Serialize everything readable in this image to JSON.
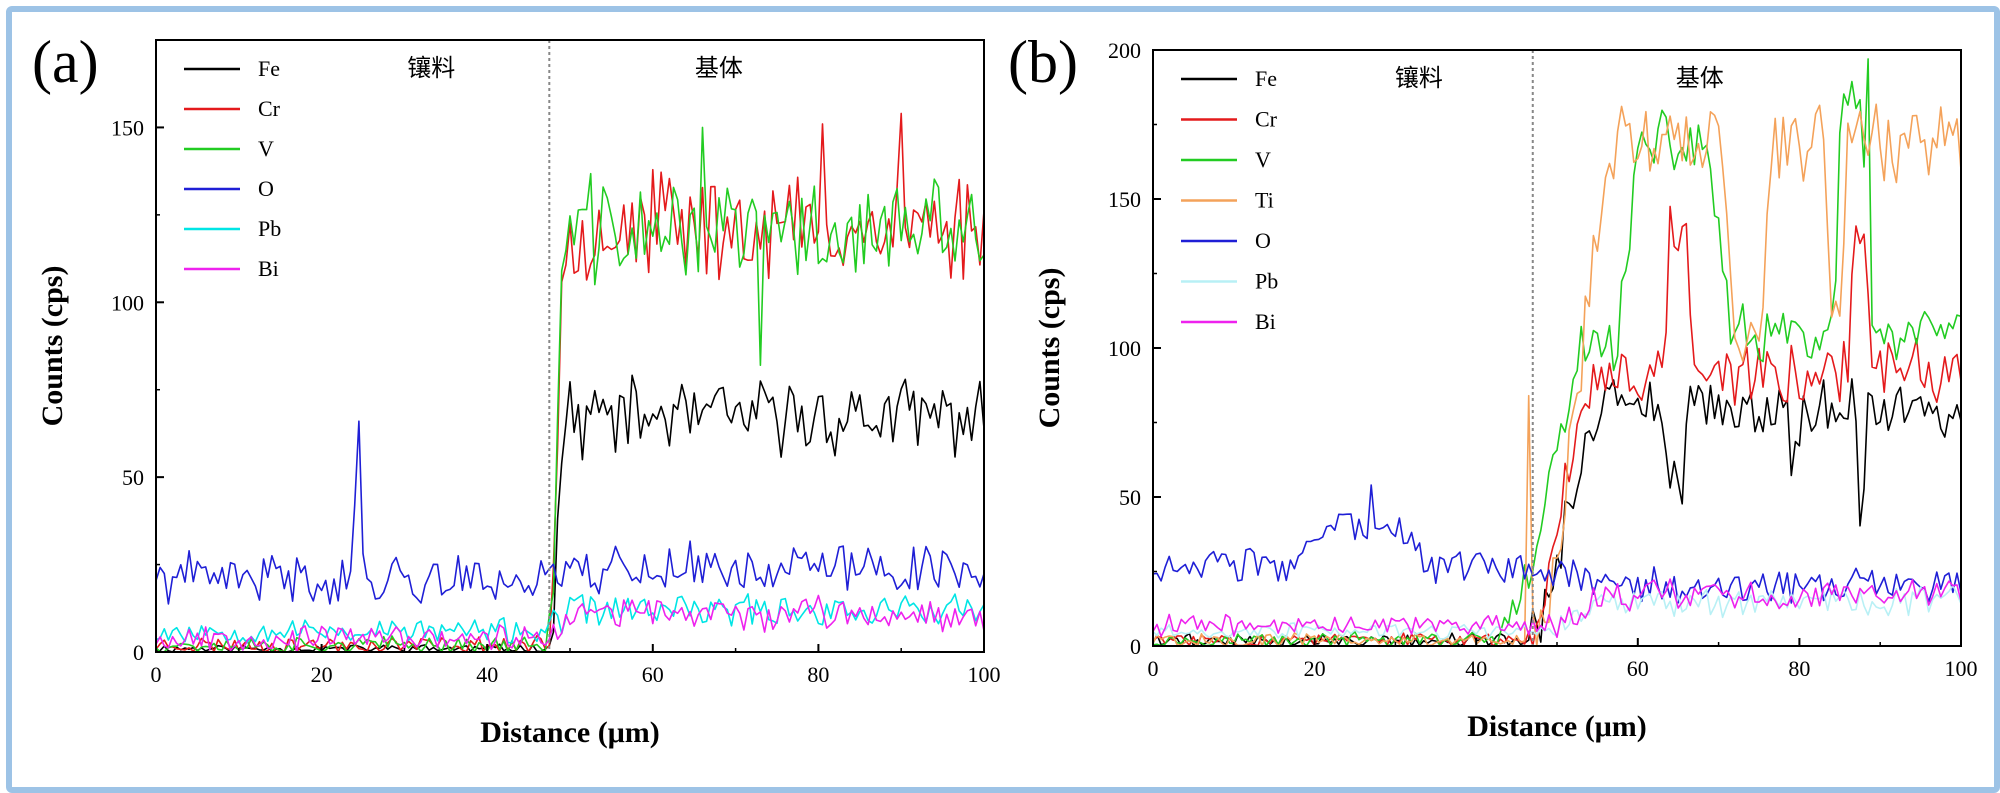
{
  "figure": {
    "border_color": "#9dc3e6",
    "region_left_label": "镶料",
    "region_right_label": "基体"
  },
  "chart_data": [
    {
      "panel_label": "(a)",
      "type": "line",
      "title": "",
      "xlabel": "Distance (μm)",
      "ylabel": "Counts (cps)",
      "xlim": [
        0,
        100
      ],
      "ylim": [
        0,
        175
      ],
      "xticks": [
        0,
        20,
        40,
        60,
        80,
        100
      ],
      "yticks": [
        0,
        50,
        100,
        150
      ],
      "grid": false,
      "legend_position": "top-left",
      "interface_x": 47.5,
      "region_labels": [
        "镶料",
        "基体"
      ],
      "sample_step": 0.5,
      "series": [
        {
          "name": "Fe",
          "color": "#000000",
          "before": 1,
          "after": 67,
          "amp_before": 1,
          "amp_after": 9,
          "rise": [
            47.5,
            49.5
          ],
          "spikes": [],
          "seed": 11
        },
        {
          "name": "Cr",
          "color": "#e41a1c",
          "before": 2,
          "after": 122,
          "amp_before": 2,
          "amp_after": 13,
          "rise": [
            47.5,
            49.5
          ],
          "spikes": [
            {
              "x": 90,
              "y": 154
            },
            {
              "x": 80.5,
              "y": 151
            }
          ],
          "seed": 23
        },
        {
          "name": "V",
          "color": "#22cc22",
          "before": 2,
          "after": 120,
          "amp_before": 2,
          "amp_after": 13,
          "rise": [
            47.5,
            49.5
          ],
          "spikes": [
            {
              "x": 66,
              "y": 150
            },
            {
              "x": 73,
              "y": 82
            }
          ],
          "seed": 37
        },
        {
          "name": "O",
          "color": "#1f1fd6",
          "before": 21,
          "after": 24,
          "amp_before": 6,
          "amp_after": 6,
          "rise": [
            47.5,
            48.5
          ],
          "spikes": [
            {
              "x": 24.5,
              "y": 66
            },
            {
              "x": 24,
              "y": 42
            }
          ],
          "seed": 41
        },
        {
          "name": "Pb",
          "color": "#00e5e5",
          "before": 6,
          "after": 12,
          "amp_before": 3,
          "amp_after": 4,
          "rise": [
            47.5,
            50
          ],
          "spikes": [],
          "seed": 53
        },
        {
          "name": "Bi",
          "color": "#ee22ee",
          "before": 4,
          "after": 11,
          "amp_before": 3,
          "amp_after": 4,
          "rise": [
            47.5,
            50
          ],
          "spikes": [],
          "seed": 67
        }
      ]
    },
    {
      "panel_label": "(b)",
      "type": "line",
      "title": "",
      "xlabel": "Distance (μm)",
      "ylabel": "Counts (cps)",
      "xlim": [
        0,
        100
      ],
      "ylim": [
        0,
        200
      ],
      "xticks": [
        0,
        20,
        40,
        60,
        80,
        100
      ],
      "yticks": [
        0,
        50,
        100,
        150,
        200
      ],
      "grid": false,
      "legend_position": "top-left",
      "interface_x": 47,
      "region_labels": [
        "镶料",
        "基体"
      ],
      "sample_step": 0.5,
      "series": [
        {
          "name": "Fe",
          "color": "#000000",
          "before": 2,
          "after": 80,
          "amp_before": 2,
          "amp_after": 8,
          "rise": [
            46,
            56
          ],
          "dips": [
            {
              "x1": 63,
              "x2": 66.5,
              "y": 52
            },
            {
              "x1": 78.5,
              "x2": 80.5,
              "y": 62
            },
            {
              "x1": 87,
              "x2": 88.5,
              "y": 45
            }
          ],
          "spikes": [],
          "seed": 79
        },
        {
          "name": "Cr",
          "color": "#e41a1c",
          "before": 2,
          "after": 92,
          "amp_before": 2,
          "amp_after": 9,
          "rise": [
            46,
            55
          ],
          "bumps": [
            {
              "x1": 63,
              "x2": 67,
              "y": 140
            },
            {
              "x1": 86,
              "x2": 89,
              "y": 138
            }
          ],
          "spikes": [],
          "seed": 83
        },
        {
          "name": "V",
          "color": "#22cc22",
          "before": 2,
          "after": 103,
          "amp_before": 2,
          "amp_after": 9,
          "rise": [
            43,
            55
          ],
          "bumps": [
            {
              "x1": 57,
              "x2": 72,
              "y": 168
            },
            {
              "x1": 84,
              "x2": 89,
              "y": 178
            }
          ],
          "spikes": [
            {
              "x": 88.5,
              "y": 197
            }
          ],
          "seed": 97
        },
        {
          "name": "Ti",
          "color": "#f4a25a",
          "before": 2,
          "after": 170,
          "amp_before": 2,
          "amp_after": 11,
          "rise": [
            47,
            58
          ],
          "dips": [
            {
              "x1": 70,
              "x2": 77,
              "y": 105
            },
            {
              "x1": 83,
              "x2": 86,
              "y": 118
            }
          ],
          "spikes": [
            {
              "x": 46.5,
              "y": 84
            }
          ],
          "seed": 101
        },
        {
          "name": "O",
          "color": "#1f1fd6",
          "before": 26,
          "after": 20,
          "amp_before": 5,
          "amp_after": 5,
          "rise": [
            50,
            56
          ],
          "bumps": [
            {
              "x1": 17,
              "x2": 35,
              "y": 40
            }
          ],
          "spikes": [
            {
              "x": 27,
              "y": 54
            }
          ],
          "seed": 103
        },
        {
          "name": "Pb",
          "color": "#b8f0f5",
          "before": 5,
          "after": 15,
          "amp_before": 2,
          "amp_after": 4,
          "rise": [
            50,
            56
          ],
          "spikes": [],
          "seed": 107
        },
        {
          "name": "Bi",
          "color": "#ee22ee",
          "before": 7,
          "after": 17,
          "amp_before": 3,
          "amp_after": 4,
          "rise": [
            50,
            56
          ],
          "spikes": [],
          "seed": 109
        }
      ]
    }
  ]
}
